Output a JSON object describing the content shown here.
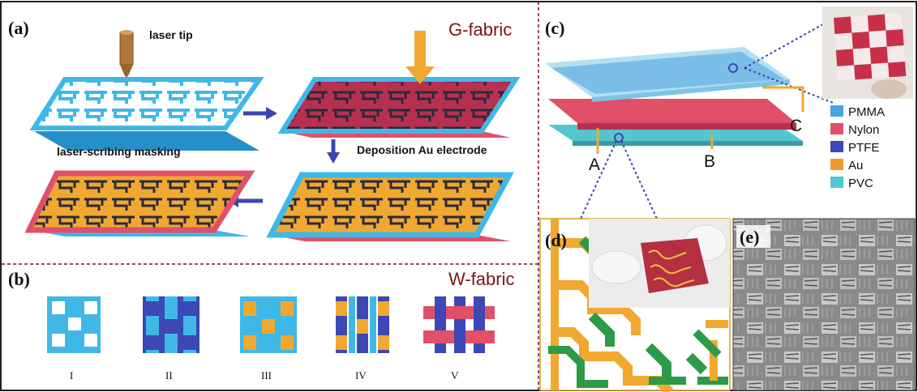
{
  "panel_a": {
    "tag": "(a)",
    "title": "G-fabric",
    "laser_label": "laser tip",
    "masking_label": "laser-scribing masking",
    "deposition_label": "Deposition Au electrode"
  },
  "panel_b": {
    "tag": "(b)",
    "title": "W-fabric",
    "structures": [
      "I",
      "II",
      "III",
      "IV",
      "V"
    ]
  },
  "panel_c": {
    "tag": "(c)",
    "electrode_labels": [
      "A",
      "B",
      "C"
    ],
    "legend": [
      {
        "label": "PMMA",
        "color": "#4aa3e0"
      },
      {
        "label": "Nylon",
        "color": "#e0506a"
      },
      {
        "label": "PTFE",
        "color": "#3d47b5"
      },
      {
        "label": "Au",
        "color": "#f2992c"
      },
      {
        "label": "PVC",
        "color": "#55c6d0"
      }
    ]
  },
  "panel_d": {
    "tag": "(d)"
  },
  "panel_e": {
    "tag": "(e)"
  },
  "colors": {
    "cyan": "#3fb8e8",
    "pink": "#e05068",
    "blue": "#3d47b5",
    "gold": "#f0a830",
    "green": "#2e9a48",
    "divider": "#7a1418",
    "arrow": "#3b47b0"
  }
}
